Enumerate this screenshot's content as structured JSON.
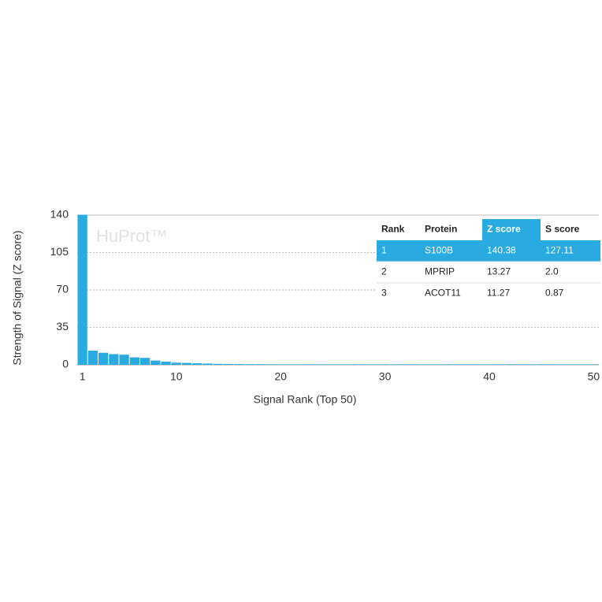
{
  "chart_data": {
    "type": "bar",
    "watermark": "HuProt™",
    "x_label": "Signal Rank (Top 50)",
    "y_label": "Strength of Signal (Z score)",
    "x": [
      1,
      2,
      3,
      4,
      5,
      6,
      7,
      8,
      9,
      10,
      11,
      12,
      13,
      14,
      15,
      16,
      17,
      18,
      19,
      20,
      21,
      22,
      23,
      24,
      25,
      26,
      27,
      28,
      29,
      30,
      31,
      32,
      33,
      34,
      35,
      36,
      37,
      38,
      39,
      40,
      41,
      42,
      43,
      44,
      45,
      46,
      47,
      48,
      49,
      50
    ],
    "values": [
      140.38,
      13.27,
      11.27,
      10,
      9.5,
      7,
      6.5,
      4,
      3,
      2,
      1.8,
      1.5,
      1.2,
      0.9,
      0.8,
      0.7,
      0.6,
      0.6,
      0.5,
      0.5,
      0.5,
      0.5,
      0.5,
      0.5,
      0.5,
      0.5,
      0.5,
      0.5,
      0.5,
      0.5,
      0.5,
      0.5,
      0.5,
      0.5,
      0.5,
      0.5,
      0.5,
      0.5,
      0.5,
      0.5,
      0.5,
      0.5,
      0.5,
      0.5,
      0.5,
      0.5,
      0.5,
      0.5,
      0.5,
      0.5
    ],
    "color": "#29abe2",
    "xlim": [
      0.5,
      50.5
    ],
    "xticks": [
      1,
      10,
      20,
      30,
      40,
      50
    ],
    "ylim": [
      0,
      140
    ],
    "yticks": [
      0,
      35,
      70,
      105,
      140
    ],
    "grid": true,
    "table": {
      "columns": [
        "Rank",
        "Protein",
        "Z score",
        "S score"
      ],
      "rows": [
        [
          "1",
          "S100B",
          "140.38",
          "127.11"
        ],
        [
          "2",
          "MPRIP",
          "13.27",
          "2.0"
        ],
        [
          "3",
          "ACOT11",
          "11.27",
          "0.87"
        ]
      ],
      "highlight_row": 0,
      "highlight_column": 2
    }
  }
}
